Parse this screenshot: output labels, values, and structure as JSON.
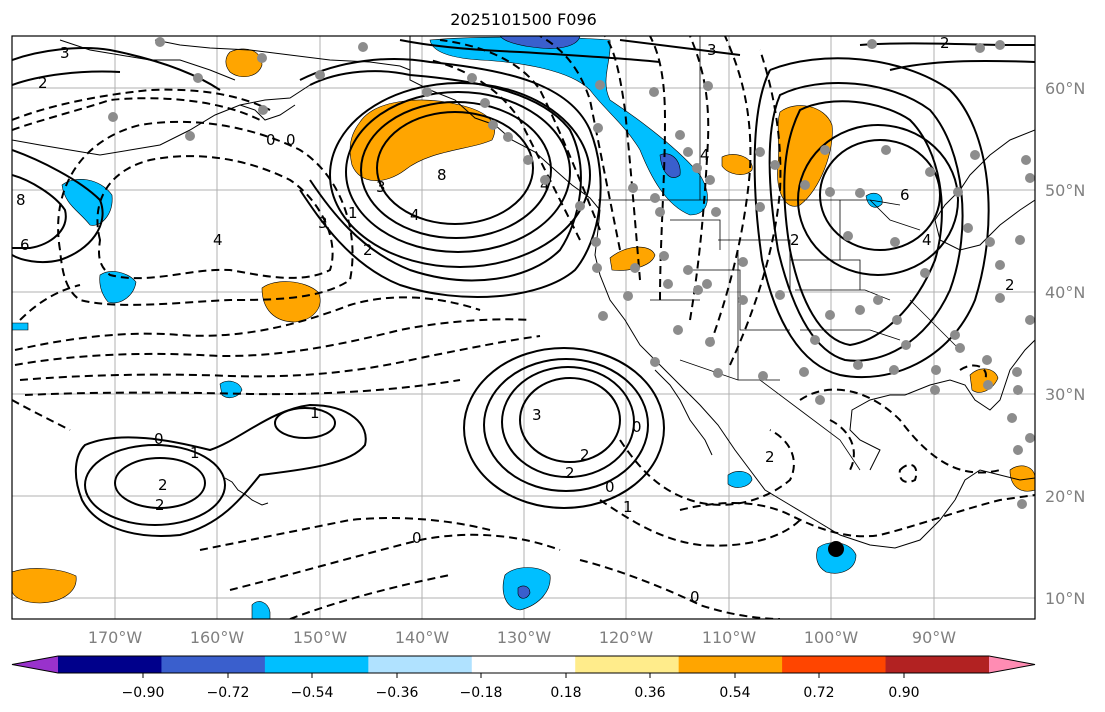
{
  "title": "2025101500 F096",
  "latitude_labels": [
    "60°N",
    "50°N",
    "40°N",
    "30°N",
    "20°N",
    "10°N"
  ],
  "longitude_labels": [
    "170°W",
    "160°W",
    "150°W",
    "140°W",
    "130°W",
    "120°W",
    "110°W",
    "100°W",
    "90°W"
  ],
  "colorbar": {
    "ticks": [
      "−0.90",
      "−0.72",
      "−0.54",
      "−0.36",
      "−0.18",
      "0.18",
      "0.36",
      "0.54",
      "0.72",
      "0.90"
    ],
    "colors": [
      "#9932cc",
      "#00008b",
      "#3a5fcd",
      "#00bfff",
      "#b0e2ff",
      "#ffffff",
      "#ffec8b",
      "#ffa500",
      "#ff4500",
      "#b22222",
      "#ff8cb3"
    ]
  },
  "contour_labels": [
    "3",
    "2",
    "0",
    "8",
    "3",
    "4",
    "2",
    "3",
    "1",
    "4",
    "8",
    "4",
    "6",
    "0",
    "3",
    "4",
    "2",
    "6",
    "4",
    "2",
    "1",
    "2",
    "0",
    "1",
    "2",
    "2",
    "3",
    "2",
    "2",
    "0",
    "1",
    "0",
    "2",
    "0",
    "0"
  ],
  "shading_colors": {
    "positive": "#ffa500",
    "negative": "#00bfff",
    "strong_negative": "#3a5fcd",
    "extreme_negative": "#9932cc"
  }
}
